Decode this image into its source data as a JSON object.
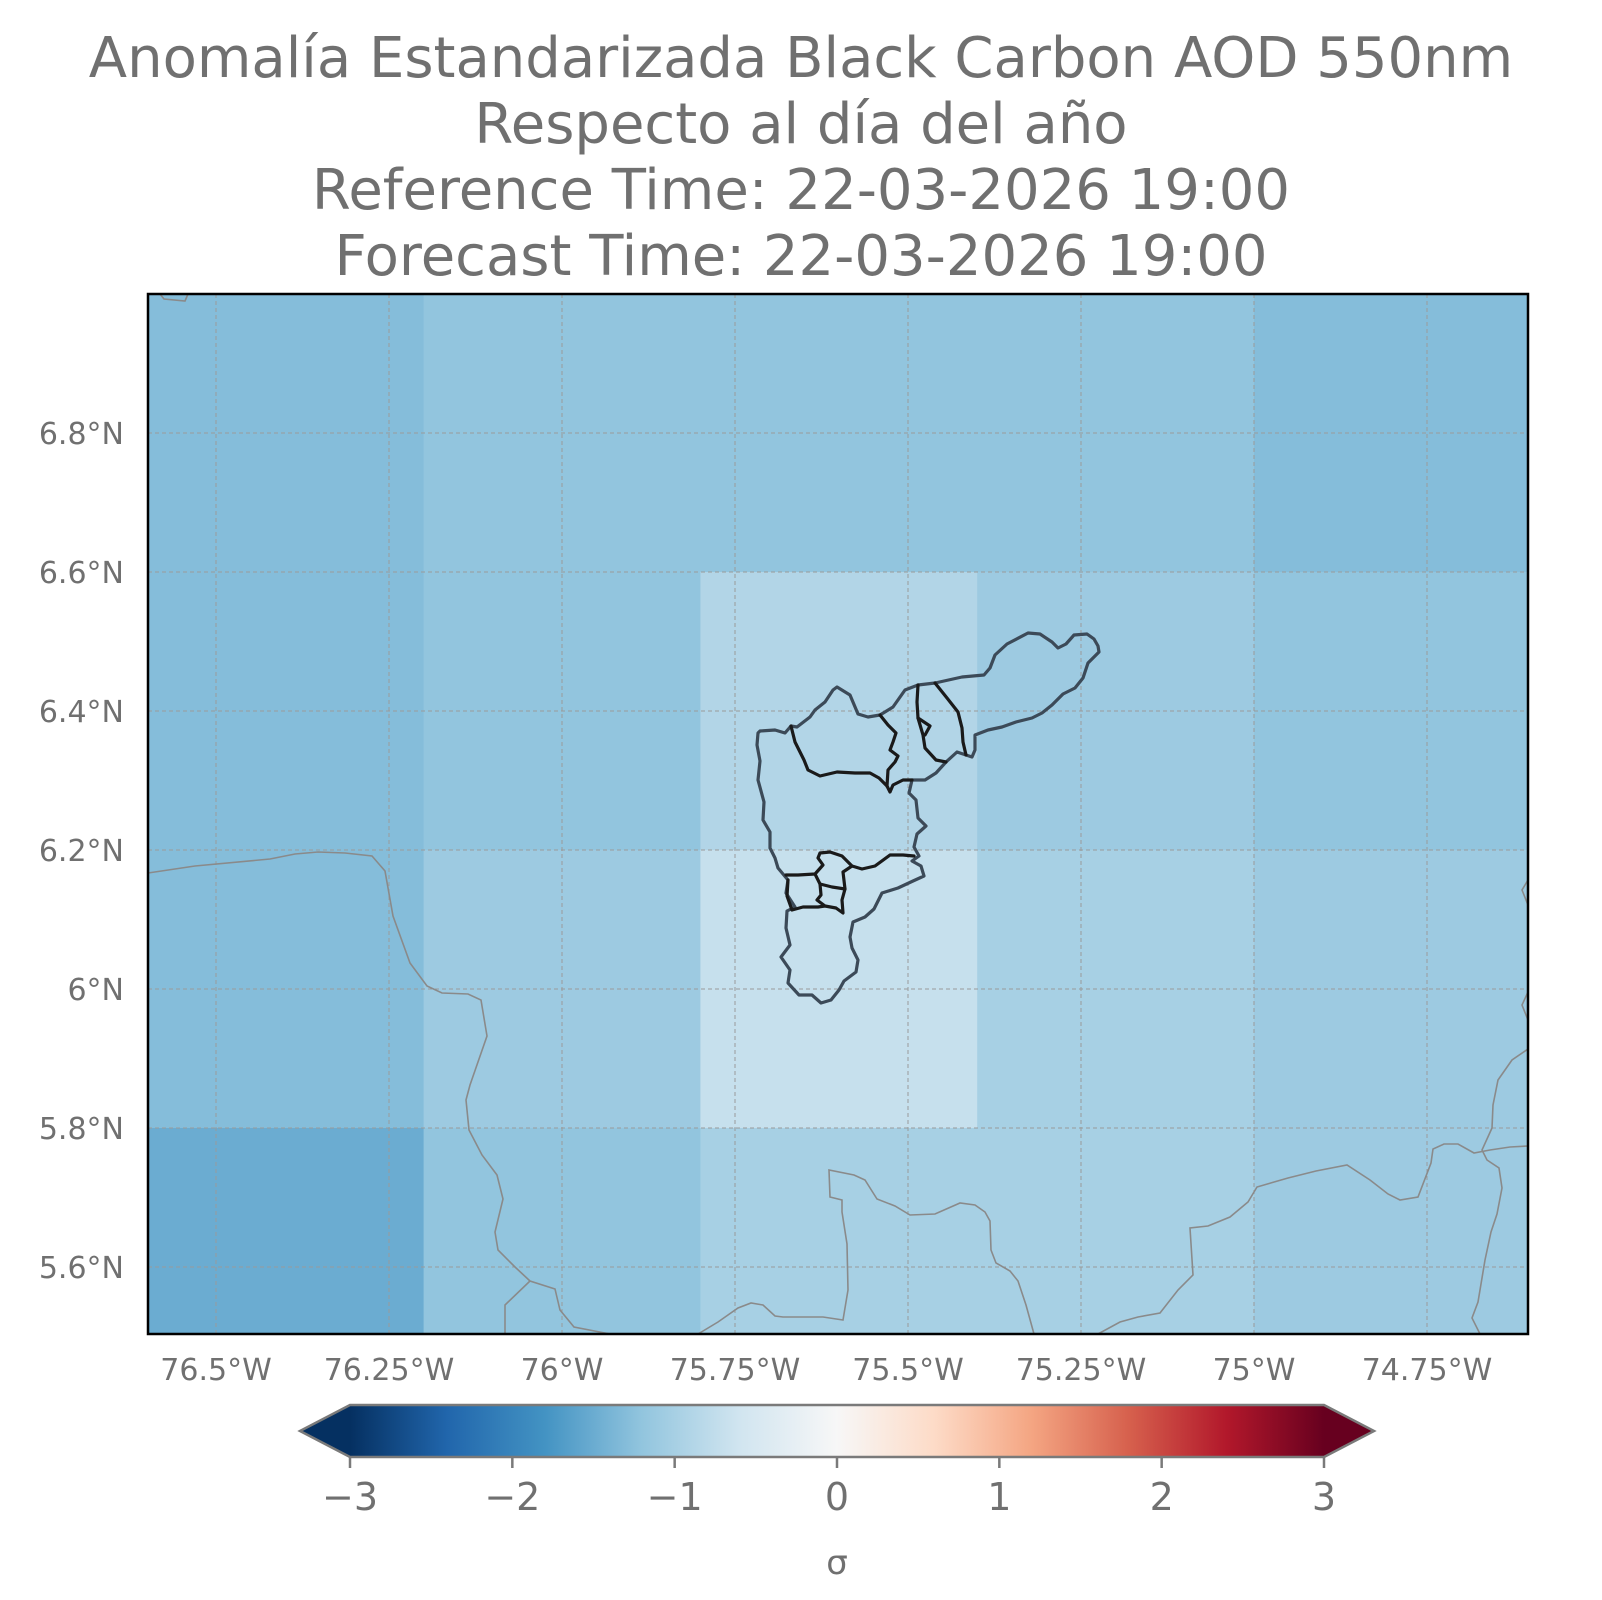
{
  "title": {
    "line1": "Anomalía Estandarizada Black Carbon AOD 550nm",
    "line2": "Respecto al día del año",
    "line3": "Reference Time: 22-03-2026 19:00",
    "line4": "Forecast Time: 22-03-2026 19:00"
  },
  "map": {
    "lon_ticks": [
      {
        "value": -76.5,
        "label": "76.5°W"
      },
      {
        "value": -76.25,
        "label": "76.25°W"
      },
      {
        "value": -76.0,
        "label": "76°W"
      },
      {
        "value": -75.75,
        "label": "75.75°W"
      },
      {
        "value": -75.5,
        "label": "75.5°W"
      },
      {
        "value": -75.25,
        "label": "75.25°W"
      },
      {
        "value": -75.0,
        "label": "75°W"
      },
      {
        "value": -74.75,
        "label": "74.75°W"
      }
    ],
    "lat_ticks": [
      {
        "value": 6.8,
        "label": "6.8°N"
      },
      {
        "value": 6.6,
        "label": "6.6°N"
      },
      {
        "value": 6.4,
        "label": "6.4°N"
      },
      {
        "value": 6.2,
        "label": "6.2°N"
      },
      {
        "value": 6.0,
        "label": "6°N"
      },
      {
        "value": 5.8,
        "label": "5.8°N"
      },
      {
        "value": 5.6,
        "label": "5.6°N"
      }
    ],
    "cells": [
      {
        "lon": [
          -76.6,
          -76.2
        ],
        "lat": [
          6.6,
          7.0
        ],
        "sigma": -1.3
      },
      {
        "lon": [
          -76.2,
          -75.8
        ],
        "lat": [
          6.6,
          7.0
        ],
        "sigma": -1.2
      },
      {
        "lon": [
          -75.8,
          -75.4
        ],
        "lat": [
          6.6,
          7.0
        ],
        "sigma": -1.2
      },
      {
        "lon": [
          -75.4,
          -75.0
        ],
        "lat": [
          6.6,
          7.0
        ],
        "sigma": -1.2
      },
      {
        "lon": [
          -75.0,
          -74.6
        ],
        "lat": [
          6.6,
          7.0
        ],
        "sigma": -1.3
      },
      {
        "lon": [
          -76.6,
          -76.2
        ],
        "lat": [
          6.2,
          6.6
        ],
        "sigma": -1.3
      },
      {
        "lon": [
          -76.2,
          -75.8
        ],
        "lat": [
          6.2,
          6.6
        ],
        "sigma": -1.2
      },
      {
        "lon": [
          -75.8,
          -75.4
        ],
        "lat": [
          6.2,
          6.6
        ],
        "sigma": -0.9
      },
      {
        "lon": [
          -75.4,
          -75.0
        ],
        "lat": [
          6.2,
          6.6
        ],
        "sigma": -1.1
      },
      {
        "lon": [
          -75.0,
          -74.6
        ],
        "lat": [
          6.2,
          6.6
        ],
        "sigma": -1.2
      },
      {
        "lon": [
          -76.6,
          -76.2
        ],
        "lat": [
          5.8,
          6.2
        ],
        "sigma": -1.3
      },
      {
        "lon": [
          -76.2,
          -75.8
        ],
        "lat": [
          5.8,
          6.2
        ],
        "sigma": -1.1
      },
      {
        "lon": [
          -75.8,
          -75.4
        ],
        "lat": [
          5.8,
          6.2
        ],
        "sigma": -0.7
      },
      {
        "lon": [
          -75.4,
          -75.0
        ],
        "lat": [
          5.8,
          6.2
        ],
        "sigma": -1.0
      },
      {
        "lon": [
          -75.0,
          -74.6
        ],
        "lat": [
          5.8,
          6.2
        ],
        "sigma": -1.1
      },
      {
        "lon": [
          -76.6,
          -76.2
        ],
        "lat": [
          5.4,
          5.8
        ],
        "sigma": -1.5
      },
      {
        "lon": [
          -76.2,
          -75.8
        ],
        "lat": [
          5.4,
          5.8
        ],
        "sigma": -1.2
      },
      {
        "lon": [
          -75.8,
          -75.4
        ],
        "lat": [
          5.4,
          5.8
        ],
        "sigma": -1.0
      },
      {
        "lon": [
          -75.4,
          -75.0
        ],
        "lat": [
          5.4,
          5.8
        ],
        "sigma": -1.0
      },
      {
        "lon": [
          -75.0,
          -74.6
        ],
        "lat": [
          5.4,
          5.8
        ],
        "sigma": -1.1
      }
    ],
    "colors": {
      "frame": "#000000",
      "grid": "#9a9a9a",
      "boundary": "#8a8a8a",
      "municipality": "#1a1a1a",
      "text": "#707070"
    }
  },
  "colorbar": {
    "ticks": [
      {
        "value": -3,
        "label": "−3"
      },
      {
        "value": -2,
        "label": "−2"
      },
      {
        "value": -1,
        "label": "−1"
      },
      {
        "value": 0,
        "label": "0"
      },
      {
        "value": 1,
        "label": "1"
      },
      {
        "value": 2,
        "label": "2"
      },
      {
        "value": 3,
        "label": "3"
      }
    ],
    "label": "σ",
    "colormap": "RdBu_r",
    "extend": "both",
    "range": [
      -3,
      3
    ]
  }
}
